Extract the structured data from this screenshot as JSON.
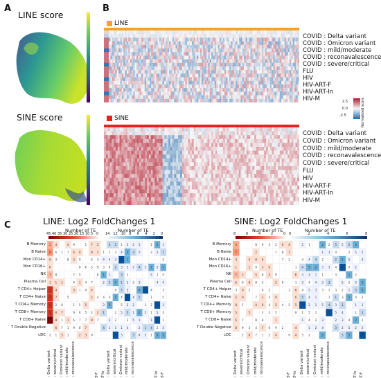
{
  "panels": {
    "a": {
      "label": "A",
      "line_title": "LINE score",
      "sine_title": "SINE score"
    },
    "b": {
      "label": "B",
      "line_tag": "LINE",
      "sine_tag": "SINE",
      "rows": [
        "COVID : Delta variant",
        "COVID : Omicron variant",
        "COVID : mild/moderate",
        "COVID : reconavalescence",
        "COVID : severe/critical",
        "FLU",
        "HIV",
        "HIV-ART-F",
        "HIV-ART-In",
        "HIV-M"
      ],
      "colorbar_title": "Normalized score",
      "colorbar_ticks": [
        "2.5",
        "0.0",
        "-2.5"
      ]
    },
    "c": {
      "label": "C",
      "line_title": "LINE: Log2 FoldChanges 1",
      "sine_title": "SINE: Log2 FoldChanges 1",
      "number_of_te": "Number of TE",
      "line_ticks_left": [
        "45",
        "40",
        "35",
        "30",
        "25",
        "20",
        "15",
        "10",
        "5",
        "0"
      ],
      "line_ticks_right": [
        "14",
        "12",
        "10",
        "8",
        "6",
        "4",
        "2",
        "0"
      ],
      "sine_ticks_left": [
        "8",
        "6",
        "4",
        "2",
        "0"
      ],
      "sine_ticks_right": [
        "0",
        "2",
        "4",
        "6",
        "8"
      ],
      "cell_types": [
        "B Memory",
        "B Naive",
        "Mon CD14+",
        "Mon CD16+",
        "NK",
        "Plasma Cell",
        "T CD4+ Helper",
        "T CD4+ Naive",
        "T CD4+ Memory",
        "T CD8+ Memory",
        "T CD8+ Naive",
        "T Double Negative",
        "cDC"
      ],
      "conditions": [
        "COVID : Delta variant",
        "COVID : severe/critical",
        "COVID : Omicron variant",
        "COVID : mild/moderate",
        "COVID : reconavalescence",
        "FLU",
        "HIV",
        "HIV-M",
        "HIV-ART-F",
        "HIV-ART-In",
        "COVID : Delta variant",
        "COVID : severe/critical",
        "COVID : Omicron variant",
        "COVID : mild/moderate",
        "COVID : reconavalescence",
        "FLU",
        "HIV",
        "HIV-M",
        "HIV-ART-In",
        "HIV-ART-F"
      ]
    }
  },
  "colors": {
    "line_tag": "#f4a322",
    "sine_tag": "#e8211f",
    "heat_red": "#c0282b",
    "heat_blue": "#2c5fb0"
  }
}
